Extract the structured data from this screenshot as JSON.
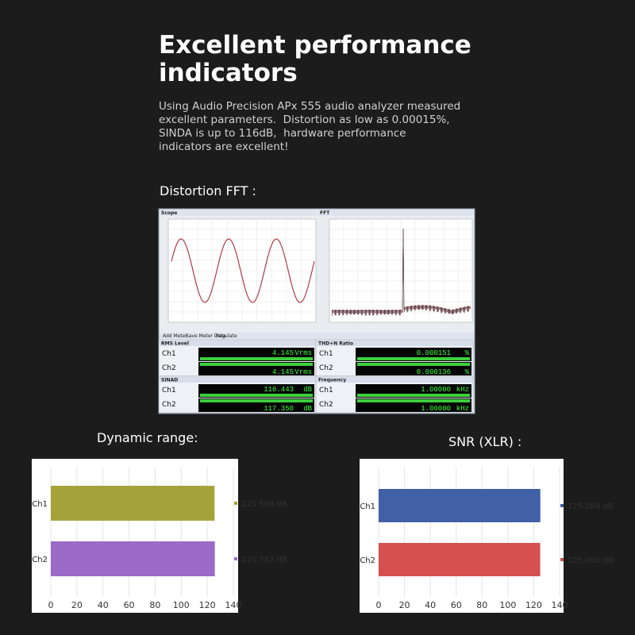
{
  "header": {
    "title_lines": [
      "Excellent performance",
      "indicators"
    ],
    "paragraph_lines": [
      "Using Audio Precision APx 555 audio analyzer measured",
      "excellent parameters.  Distortion as low as 0.00015%,",
      "SINDA is up to 116dB,  hardware performance",
      "indicators are excellent!"
    ]
  },
  "sections": {
    "fft": "Distortion FFT :"
  },
  "analyzer": {
    "panels": [
      "Scope",
      "FFT"
    ],
    "toolbar": [
      "Add Meter",
      "Save Meter Data",
      "Regulate"
    ],
    "meters": [
      {
        "title": "RMS Level",
        "unit": "Vrms",
        "rows": [
          {
            "channel": "Ch1",
            "value": "4.145"
          },
          {
            "channel": "Ch2",
            "value": "4.145"
          }
        ]
      },
      {
        "title": "THD+N Ratio",
        "unit": "%",
        "rows": [
          {
            "channel": "Ch1",
            "value": "0.000151"
          },
          {
            "channel": "Ch2",
            "value": "0.000136"
          }
        ]
      },
      {
        "title": "SINAD",
        "unit": "dB",
        "rows": [
          {
            "channel": "Ch1",
            "value": "116.443"
          },
          {
            "channel": "Ch2",
            "value": "117.350"
          }
        ]
      },
      {
        "title": "Frequency",
        "unit": "kHz",
        "rows": [
          {
            "channel": "Ch1",
            "value": "1.00000"
          },
          {
            "channel": "Ch2",
            "value": "1.00000"
          }
        ]
      }
    ]
  },
  "chart_data": [
    {
      "type": "bar",
      "orientation": "horizontal",
      "title": "Dynamic range:",
      "categories": [
        "Ch1",
        "Ch2"
      ],
      "values": [
        125.598,
        125.782
      ],
      "value_labels": [
        "125.598 dB",
        "125.782 dB"
      ],
      "colors": [
        "#a4a33a",
        "#9b6bc7"
      ],
      "xlim": [
        0,
        140
      ],
      "xticks": [
        0,
        20,
        40,
        60,
        80,
        100,
        120,
        140
      ],
      "grid": true
    },
    {
      "type": "bar",
      "orientation": "horizontal",
      "title": "SNR (XLR) :",
      "categories": [
        "Ch1",
        "Ch2"
      ],
      "values": [
        125.084,
        125.0
      ],
      "value_labels": [
        "125.084 dB",
        "125.000 dB"
      ],
      "colors": [
        "#4260a6",
        "#d65050"
      ],
      "xlim": [
        0,
        140
      ],
      "xticks": [
        0,
        20,
        40,
        60,
        80,
        100,
        120,
        140
      ],
      "grid": true
    }
  ]
}
